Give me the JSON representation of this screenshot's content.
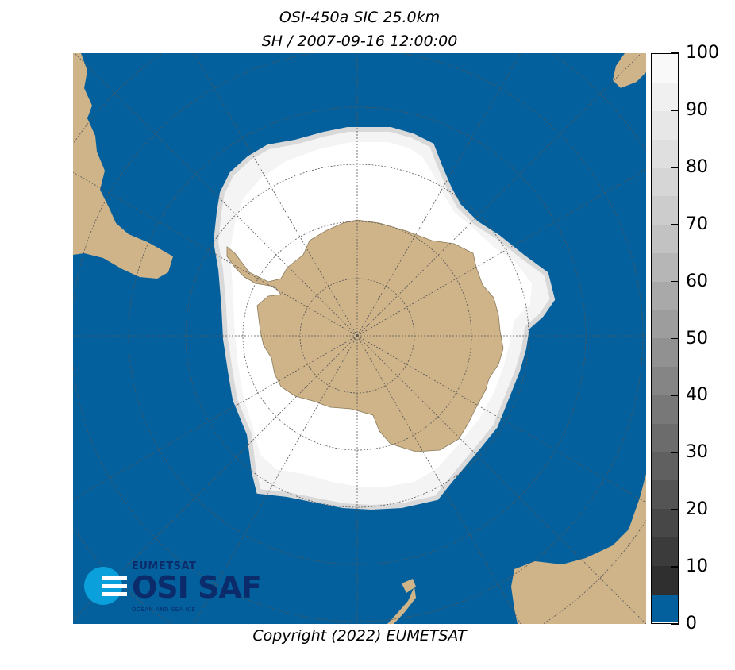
{
  "title": "OSI-450a SIC 25.0km",
  "subtitle": "SH / 2007-09-16 12:00:00",
  "copyright": "Copyright (2022)  EUMETSAT",
  "logo": {
    "org": "EUMETSAT",
    "name": "OSI SAF",
    "tagline": "OCEAN AND SEA ICE"
  },
  "colors": {
    "ocean": "#03609c",
    "land": "#cfb48a",
    "ice_full": "#ffffff",
    "grid": "#555555"
  },
  "colorbar": {
    "min": 0,
    "max": 100,
    "ticks": [
      "0",
      "10",
      "20",
      "30",
      "40",
      "50",
      "60",
      "70",
      "80",
      "90",
      "100"
    ],
    "bands": [
      {
        "from": 0,
        "to": 5,
        "color": "#03609c"
      },
      {
        "from": 5,
        "to": 10,
        "color": "#2f2f2f"
      },
      {
        "from": 10,
        "to": 15,
        "color": "#3b3b3b"
      },
      {
        "from": 15,
        "to": 20,
        "color": "#474747"
      },
      {
        "from": 20,
        "to": 25,
        "color": "#545454"
      },
      {
        "from": 25,
        "to": 30,
        "color": "#606060"
      },
      {
        "from": 30,
        "to": 35,
        "color": "#6c6c6c"
      },
      {
        "from": 35,
        "to": 40,
        "color": "#787878"
      },
      {
        "from": 40,
        "to": 45,
        "color": "#858585"
      },
      {
        "from": 45,
        "to": 50,
        "color": "#919191"
      },
      {
        "from": 50,
        "to": 55,
        "color": "#9d9d9d"
      },
      {
        "from": 55,
        "to": 60,
        "color": "#a9a9a9"
      },
      {
        "from": 60,
        "to": 65,
        "color": "#b6b6b6"
      },
      {
        "from": 65,
        "to": 70,
        "color": "#c2c2c2"
      },
      {
        "from": 70,
        "to": 75,
        "color": "#cccccc"
      },
      {
        "from": 75,
        "to": 80,
        "color": "#d6d6d6"
      },
      {
        "from": 80,
        "to": 85,
        "color": "#dfdfdf"
      },
      {
        "from": 85,
        "to": 90,
        "color": "#e7e7e7"
      },
      {
        "from": 90,
        "to": 95,
        "color": "#f0f0f0"
      },
      {
        "from": 95,
        "to": 100,
        "color": "#f9f9f9"
      }
    ]
  }
}
